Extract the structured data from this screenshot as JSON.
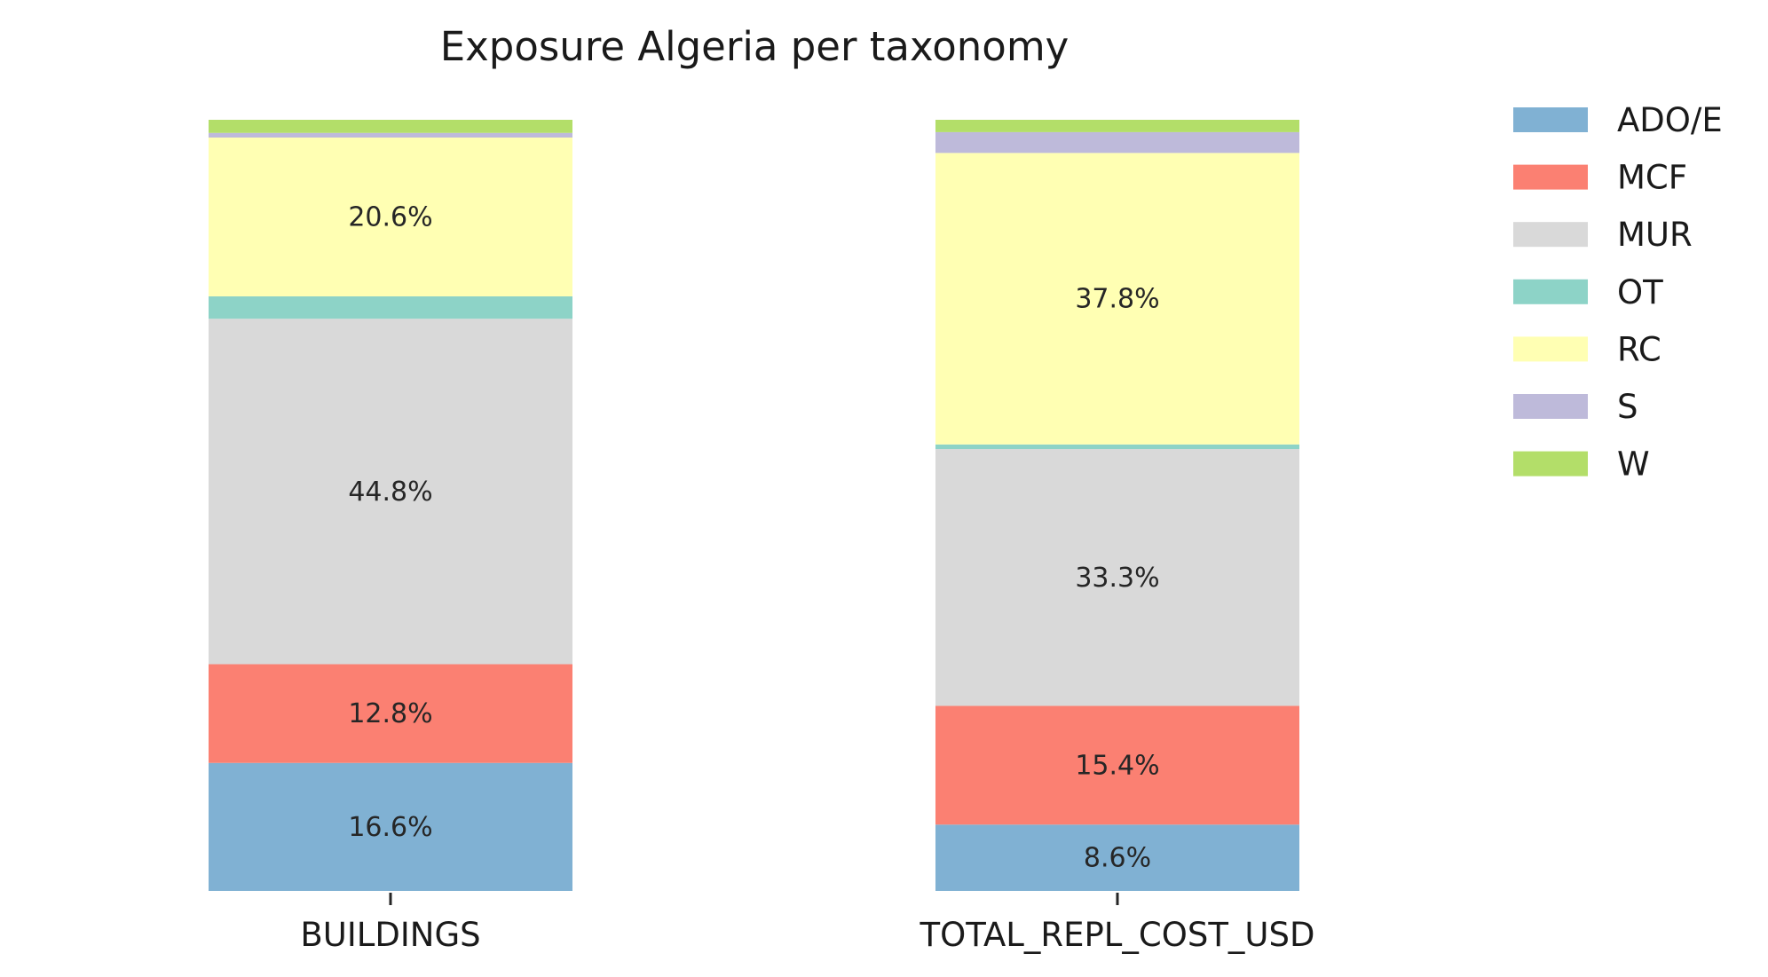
{
  "chart_data": {
    "type": "bar",
    "stacked": true,
    "normalized": true,
    "title": "Exposure Algeria per taxonomy",
    "xlabel": "",
    "ylabel": "",
    "ylim": [
      0,
      100
    ],
    "grid": false,
    "legend_position": "right",
    "categories": [
      "BUILDINGS",
      "TOTAL_REPL_COST_USD"
    ],
    "series": [
      {
        "name": "ADO/E",
        "color": "#80b1d3",
        "values": [
          16.6,
          8.6
        ],
        "labels": [
          "16.6%",
          "8.6%"
        ]
      },
      {
        "name": "MCF",
        "color": "#fb8072",
        "values": [
          12.8,
          15.4
        ],
        "labels": [
          "12.8%",
          "15.4%"
        ]
      },
      {
        "name": "MUR",
        "color": "#d9d9d9",
        "values": [
          44.8,
          33.3
        ],
        "labels": [
          "44.8%",
          "33.3%"
        ]
      },
      {
        "name": "OT",
        "color": "#8dd3c7",
        "values": [
          2.9,
          0.6
        ],
        "labels": [
          "",
          ""
        ]
      },
      {
        "name": "RC",
        "color": "#ffffb3",
        "values": [
          20.6,
          37.8
        ],
        "labels": [
          "20.6%",
          "37.8%"
        ]
      },
      {
        "name": "S",
        "color": "#bebada",
        "values": [
          0.6,
          2.7
        ],
        "labels": [
          "",
          ""
        ]
      },
      {
        "name": "W",
        "color": "#b3de69",
        "values": [
          1.7,
          1.6
        ],
        "labels": [
          "",
          ""
        ]
      }
    ]
  }
}
